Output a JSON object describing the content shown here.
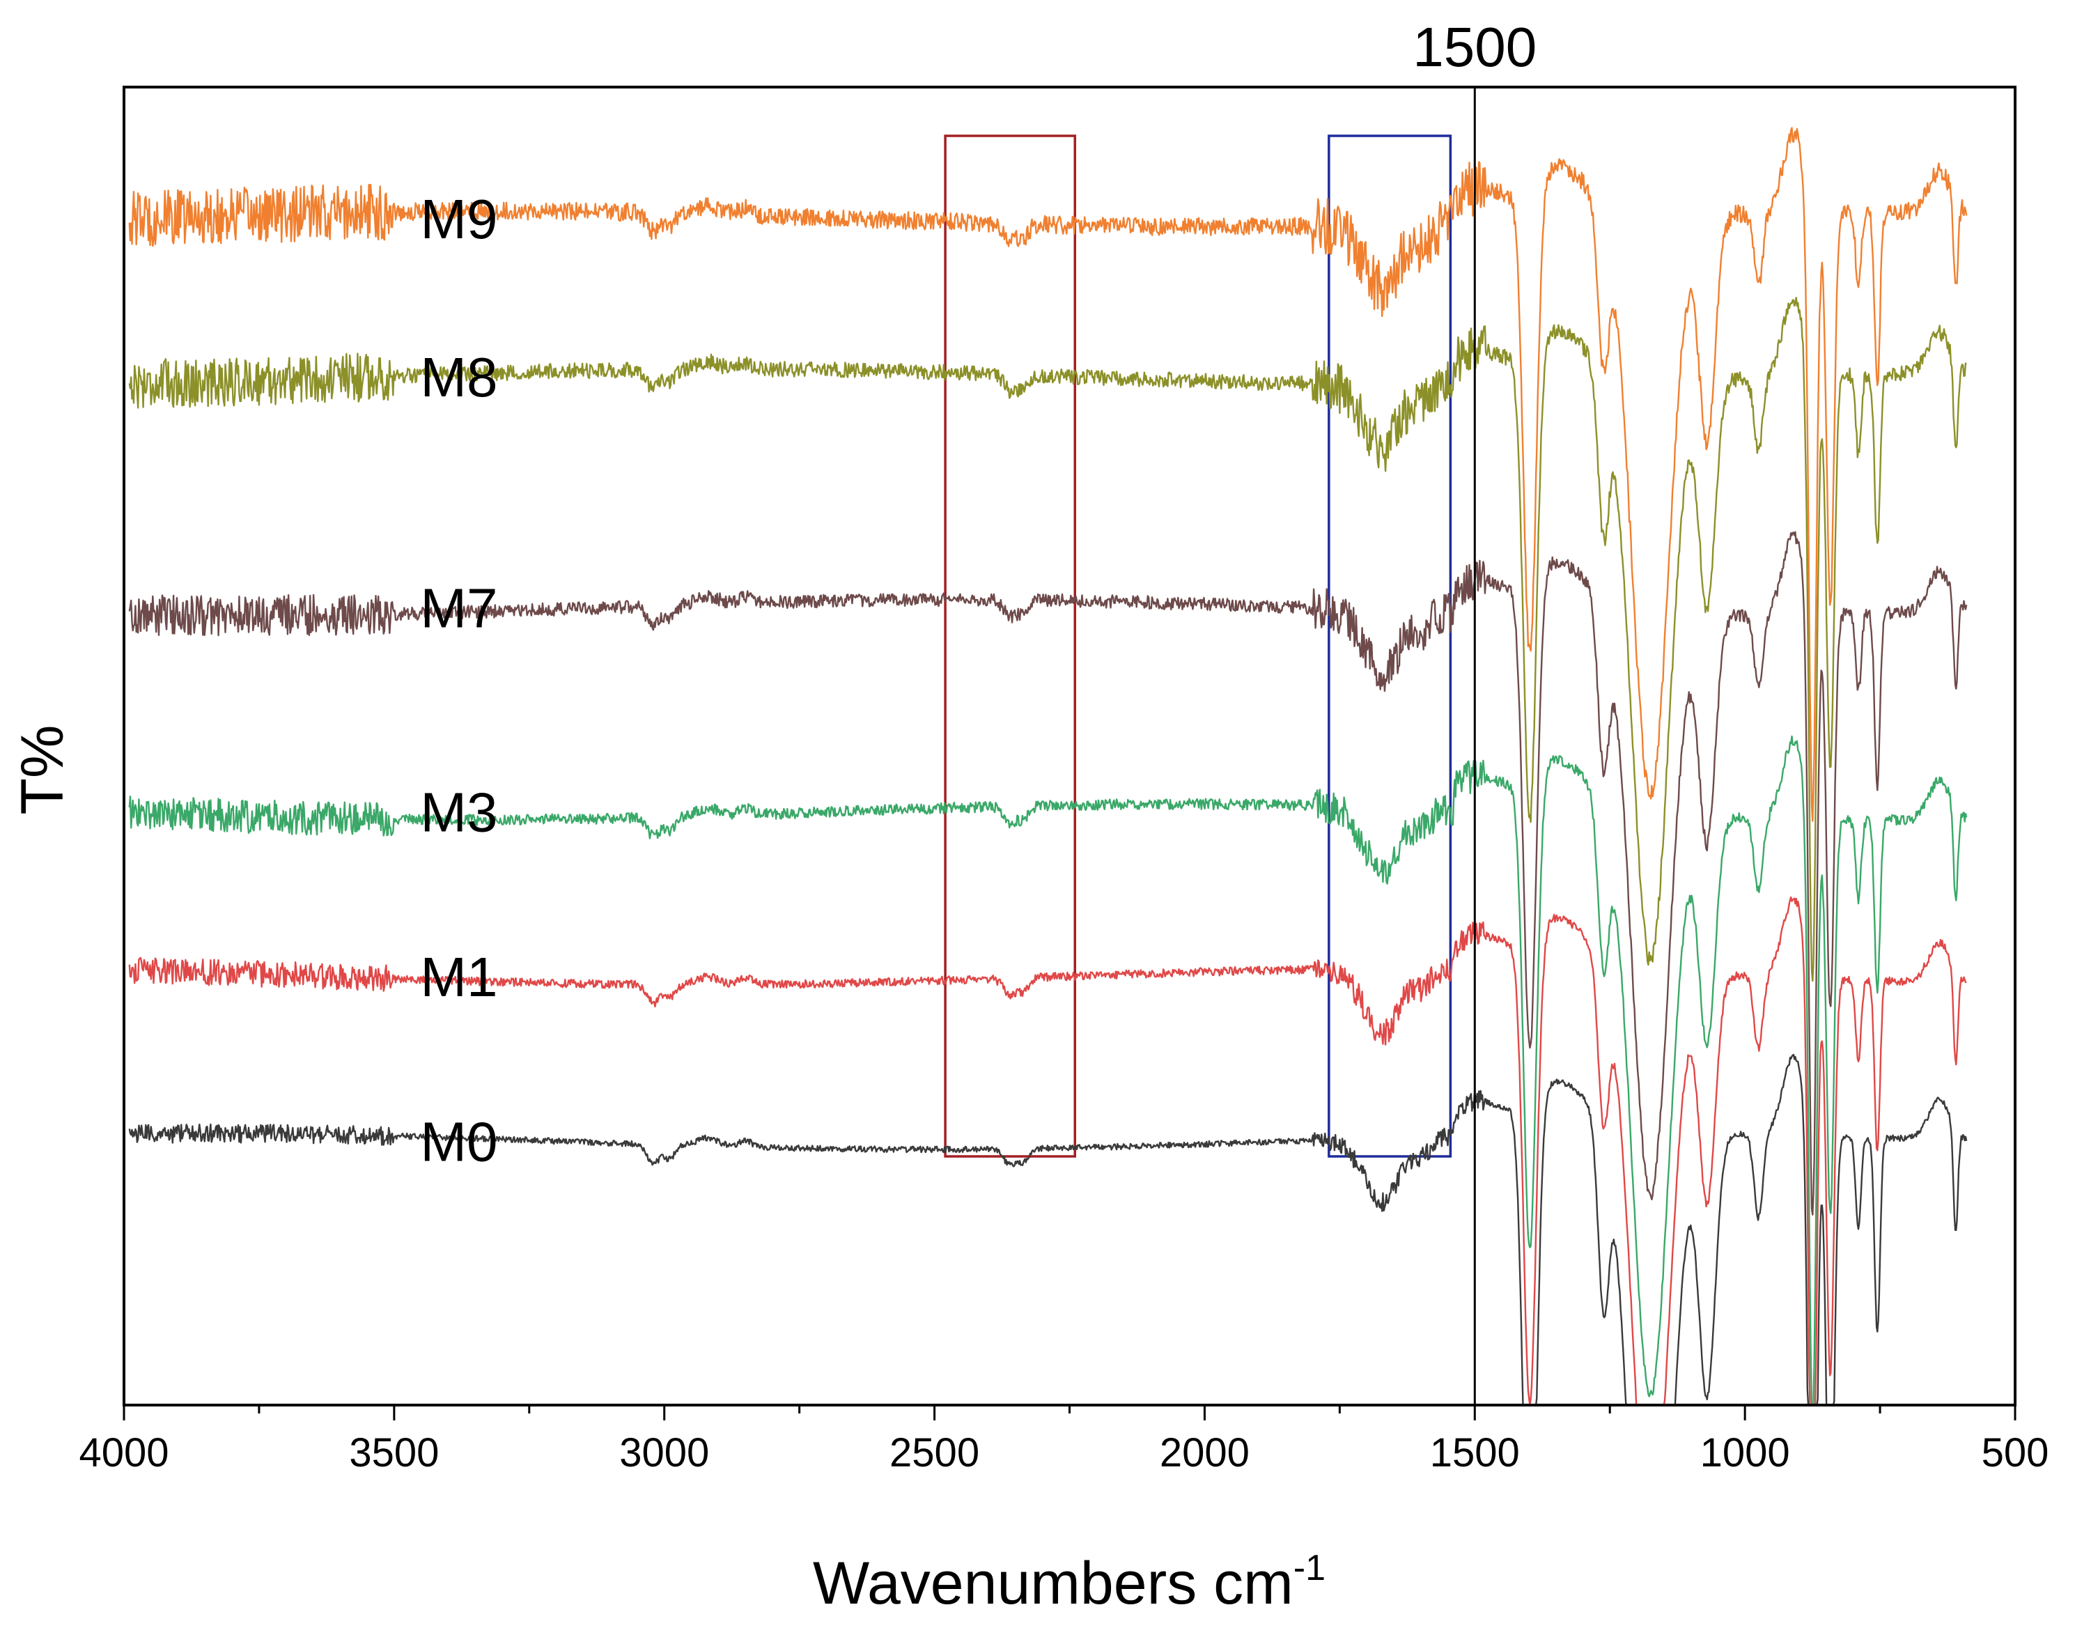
{
  "chart_data": {
    "type": "line",
    "title": "",
    "xlabel": "Wavenumbers  cm",
    "xlabel_superscript": "-1",
    "ylabel": "T%",
    "xlim": [
      4000,
      500
    ],
    "xticks": [
      4000,
      3500,
      3000,
      2500,
      2000,
      1500,
      1000,
      500
    ],
    "reference_line": {
      "x": 1500,
      "label": "1500"
    },
    "highlight_boxes": [
      {
        "x_from": 2480,
        "x_to": 2240,
        "color": "#a32024"
      },
      {
        "x_from": 1770,
        "x_to": 1545,
        "color": "#1f2c9c"
      }
    ],
    "series": [
      {
        "name": "M9",
        "color": "#f08030",
        "baseline": 900,
        "deep_scale": 1.0
      },
      {
        "name": "M8",
        "color": "#8c9028",
        "baseline": 780,
        "deep_scale": 1.0
      },
      {
        "name": "M7",
        "color": "#6e4a4a",
        "baseline": 605,
        "deep_scale": 1.0
      },
      {
        "name": "M3",
        "color": "#3aa868",
        "baseline": 450,
        "deep_scale": 1.0
      },
      {
        "name": "M1",
        "color": "#e04848",
        "baseline": 325,
        "deep_scale": 1.0
      },
      {
        "name": "M0",
        "color": "#3a3a3a",
        "baseline": 200,
        "deep_scale": 1.15
      }
    ]
  }
}
